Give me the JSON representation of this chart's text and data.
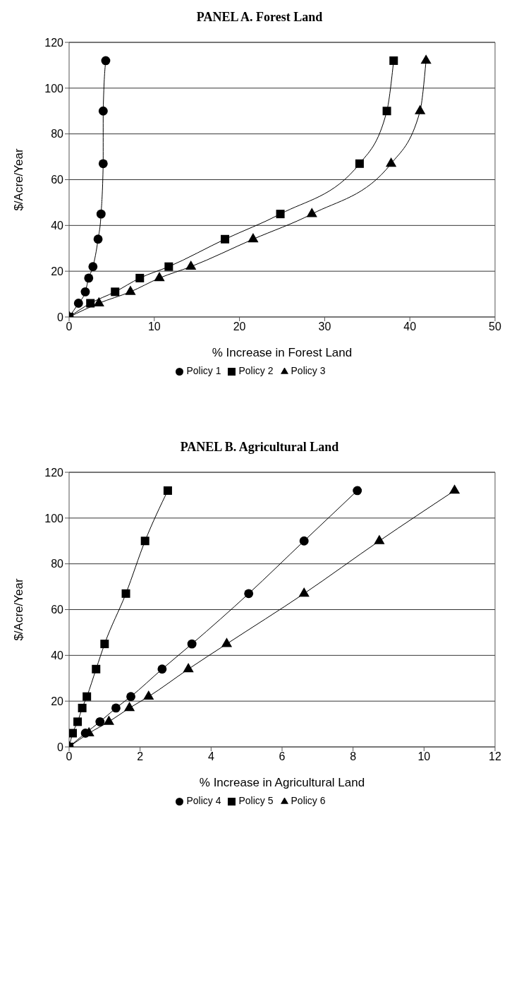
{
  "chart_data": [
    {
      "type": "line",
      "title": "PANEL A.  Forest Land",
      "xlabel": "% Increase in Forest Land",
      "ylabel": "$/Acre/Year",
      "xlim": [
        0,
        50
      ],
      "xticks": [
        0,
        10,
        20,
        30,
        40,
        50
      ],
      "ylim": [
        0,
        120
      ],
      "yticks": [
        0,
        20,
        40,
        60,
        80,
        100,
        120
      ],
      "grid": "y",
      "legend": "bottom",
      "series": [
        {
          "name": "Policy 1",
          "color": "#000000",
          "marker": "circle",
          "x": [
            0,
            1.1,
            1.9,
            2.3,
            2.8,
            3.4,
            3.75,
            4.0,
            4.0,
            4.3
          ],
          "values": [
            0,
            6,
            11,
            17,
            22,
            34,
            45,
            67,
            90,
            112
          ]
        },
        {
          "name": "Policy 2",
          "color": "#000000",
          "marker": "square",
          "x": [
            0,
            2.5,
            5.4,
            8.3,
            11.7,
            18.3,
            24.8,
            34.1,
            37.3,
            38.1
          ],
          "values": [
            0,
            6,
            11,
            17,
            22,
            34,
            45,
            67,
            90,
            112
          ]
        },
        {
          "name": "Policy 3",
          "color": "#000000",
          "marker": "triangle",
          "x": [
            0,
            3.5,
            7.2,
            10.6,
            14.3,
            21.6,
            28.5,
            37.8,
            41.2,
            41.9
          ],
          "values": [
            0,
            6,
            11,
            17,
            22,
            34,
            45,
            67,
            90,
            112
          ]
        }
      ]
    },
    {
      "type": "line",
      "title": "PANEL B.  Agricultural Land",
      "xlabel": "% Increase in Agricultural Land",
      "ylabel": "$/Acre/Year",
      "xlim": [
        0,
        12
      ],
      "xticks": [
        0,
        2,
        4,
        6,
        8,
        10,
        12
      ],
      "ylim": [
        0,
        120
      ],
      "yticks": [
        0,
        20,
        40,
        60,
        80,
        100,
        120
      ],
      "grid": "y",
      "legend": "bottom",
      "series": [
        {
          "name": "Policy 4",
          "color": "#000000",
          "marker": "circle",
          "x": [
            0,
            0.46,
            0.87,
            1.32,
            1.74,
            2.62,
            3.46,
            5.06,
            6.62,
            8.12
          ],
          "values": [
            0,
            6,
            11,
            17,
            22,
            34,
            45,
            67,
            90,
            112
          ]
        },
        {
          "name": "Policy 5",
          "color": "#000000",
          "marker": "square",
          "x": [
            0,
            0.1,
            0.24,
            0.37,
            0.5,
            0.76,
            1.0,
            1.6,
            2.14,
            2.78
          ],
          "values": [
            0,
            6,
            11,
            17,
            22,
            34,
            45,
            67,
            90,
            112
          ]
        },
        {
          "name": "Policy 6",
          "color": "#000000",
          "marker": "triangle",
          "x": [
            0,
            0.56,
            1.12,
            1.7,
            2.24,
            3.36,
            4.44,
            6.62,
            8.74,
            10.86
          ],
          "values": [
            0,
            6,
            11,
            17,
            22,
            34,
            45,
            67,
            90,
            112
          ]
        }
      ]
    }
  ]
}
